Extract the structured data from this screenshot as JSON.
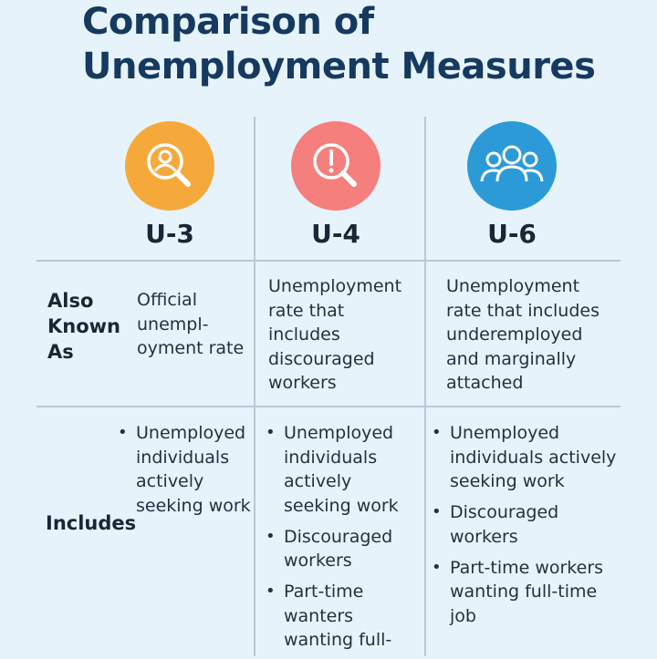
{
  "title_line1": "Comparison of",
  "title_line2": "Unemployment Measures",
  "columns": [
    {
      "label": "U-3",
      "icon": "magnifier-person-icon",
      "color": "#f6a93b"
    },
    {
      "label": "U-4",
      "icon": "magnifier-alert-icon",
      "color": "#f47f7c"
    },
    {
      "label": "U-6",
      "icon": "group-people-icon",
      "color": "#2d9ad8"
    }
  ],
  "rows": {
    "also_known_as": {
      "label": "Also Known As",
      "cells": [
        [
          "Official",
          "unempl-",
          "oyment rate"
        ],
        [
          "Unemployment",
          "rate that",
          "includes",
          "discouraged",
          "workers"
        ],
        [
          "Unemployment",
          "rate that includes",
          "underemployed",
          "and marginally",
          "attached"
        ]
      ]
    },
    "includes": {
      "label": "Includes",
      "cells": [
        [
          "Unemployed individuals actively seeking work"
        ],
        [
          "Unemployed individuals actively seeking work",
          "Discouraged workers",
          "Part-time wanters wanting full-"
        ],
        [
          "Unemployed individuals actively seeking work",
          "Discouraged workers",
          "Part-time workers wanting full-time job"
        ]
      ]
    }
  }
}
